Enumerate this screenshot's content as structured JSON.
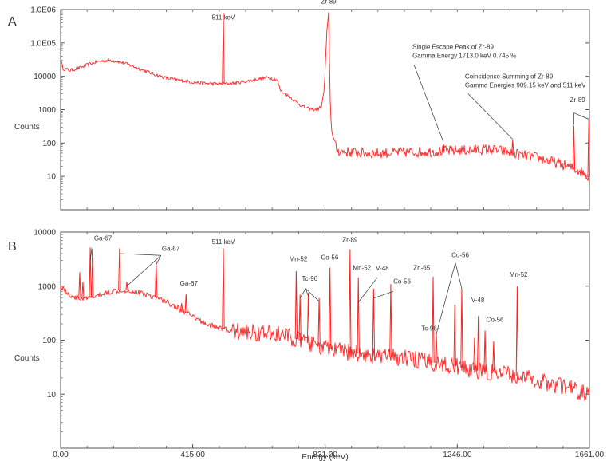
{
  "colors": {
    "trace": "#ff2020",
    "axis": "#555555",
    "leader": "#333333"
  },
  "chart_data": [
    {
      "type": "line",
      "panel_letter": "A",
      "ylabel": "Counts",
      "yscale": "log",
      "ylim": [
        1,
        1000000
      ],
      "xlim": [
        0,
        1661
      ],
      "ytick_values": [
        10,
        100,
        1000,
        10000,
        100000,
        1000000
      ],
      "ytick_labels": [
        "10",
        "100",
        "1000",
        "10000",
        "1.0E05",
        "1.0E06"
      ],
      "baseline": [
        [
          0,
          30000
        ],
        [
          8,
          17000
        ],
        [
          30,
          15000
        ],
        [
          60,
          18000
        ],
        [
          90,
          23000
        ],
        [
          120,
          28000
        ],
        [
          150,
          30000
        ],
        [
          180,
          28000
        ],
        [
          210,
          23000
        ],
        [
          240,
          18000
        ],
        [
          270,
          14000
        ],
        [
          300,
          11000
        ],
        [
          330,
          9000
        ],
        [
          360,
          8000
        ],
        [
          390,
          7200
        ],
        [
          420,
          6600
        ],
        [
          450,
          6200
        ],
        [
          480,
          6000
        ],
        [
          500,
          5900
        ],
        [
          520,
          6000
        ],
        [
          540,
          6200
        ],
        [
          560,
          6600
        ],
        [
          580,
          7000
        ],
        [
          600,
          7500
        ],
        [
          620,
          8200
        ],
        [
          650,
          9200
        ],
        [
          680,
          8000
        ],
        [
          690,
          3800
        ],
        [
          700,
          3200
        ],
        [
          720,
          2400
        ],
        [
          740,
          1700
        ],
        [
          760,
          1250
        ],
        [
          780,
          1050
        ],
        [
          800,
          1000
        ],
        [
          810,
          1050
        ],
        [
          820,
          1300
        ],
        [
          828,
          4000
        ],
        [
          836,
          200000
        ],
        [
          842,
          800000
        ],
        [
          846,
          3000
        ],
        [
          850,
          300
        ],
        [
          856,
          150
        ],
        [
          862,
          85
        ],
        [
          870,
          60
        ],
        [
          890,
          55
        ],
        [
          950,
          50
        ],
        [
          1000,
          50
        ],
        [
          1050,
          52
        ],
        [
          1100,
          53
        ],
        [
          1150,
          55
        ],
        [
          1200,
          58
        ],
        [
          1250,
          60
        ],
        [
          1300,
          62
        ],
        [
          1340,
          65
        ],
        [
          1380,
          60
        ],
        [
          1420,
          50
        ],
        [
          1460,
          42
        ],
        [
          1500,
          36
        ],
        [
          1540,
          28
        ],
        [
          1580,
          22
        ],
        [
          1620,
          16
        ],
        [
          1640,
          13
        ],
        [
          1661,
          10
        ]
      ],
      "peaks": [
        {
          "x": 511,
          "y": 800000
        },
        {
          "x": 1202,
          "y": 95
        },
        {
          "x": 1420,
          "y": 120
        },
        {
          "x": 1612,
          "y": 330
        },
        {
          "x": 1659,
          "y": 500
        }
      ],
      "annotations": [
        {
          "lines": [
            "Zr-89"
          ],
          "x": 842,
          "y": 1500000,
          "anchor": "middle",
          "leaders": []
        },
        {
          "lines": [
            "511 keV"
          ],
          "x": 511,
          "y": 500000,
          "anchor": "middle",
          "leaders": []
        },
        {
          "lines": [
            "Single Escape Peak of Zr-89",
            "Gamma Energy 1713.0 keV 0.745 %"
          ],
          "x": 1105,
          "y": 65000,
          "anchor": "start",
          "leaders": [
            {
              "from": [
                1110,
                22000
              ],
              "to": [
                1202,
                110
              ]
            }
          ]
        },
        {
          "lines": [
            "Coincidence Summing of Zr-89",
            "Gamma Energies 909.15 keV and 511 keV"
          ],
          "x": 1270,
          "y": 8500,
          "anchor": "start",
          "leaders": [
            {
              "from": [
                1280,
                3000
              ],
              "to": [
                1420,
                130
              ]
            }
          ]
        },
        {
          "lines": [
            "Zr-89"
          ],
          "x": 1600,
          "y": 1700,
          "anchor": "start",
          "leaders": [
            {
              "from": [
                1612,
                800
              ],
              "to": [
                1612,
                350
              ]
            },
            {
              "from": [
                1612,
                800
              ],
              "to": [
                1659,
                520
              ]
            }
          ]
        }
      ]
    },
    {
      "type": "line",
      "panel_letter": "B",
      "ylabel": "Counts",
      "yscale": "log",
      "ylim": [
        1,
        10000
      ],
      "xlim": [
        0,
        1661
      ],
      "xlabel": "Energy (keV)",
      "xtick_values": [
        0,
        415,
        831,
        1246,
        1661
      ],
      "xtick_labels": [
        "0.00",
        "415.00",
        "831.00",
        "1246.00",
        "1661.00"
      ],
      "ytick_values": [
        10,
        100,
        1000,
        10000
      ],
      "ytick_labels": [
        "10",
        "100",
        "1000",
        "10000"
      ],
      "baseline": [
        [
          0,
          1000
        ],
        [
          10,
          900
        ],
        [
          25,
          700
        ],
        [
          50,
          600
        ],
        [
          80,
          580
        ],
        [
          100,
          620
        ],
        [
          130,
          700
        ],
        [
          160,
          800
        ],
        [
          190,
          850
        ],
        [
          210,
          830
        ],
        [
          240,
          780
        ],
        [
          270,
          700
        ],
        [
          300,
          620
        ],
        [
          330,
          520
        ],
        [
          360,
          420
        ],
        [
          390,
          330
        ],
        [
          420,
          260
        ],
        [
          450,
          210
        ],
        [
          480,
          180
        ],
        [
          510,
          160
        ],
        [
          540,
          150
        ],
        [
          560,
          145
        ],
        [
          580,
          140
        ],
        [
          600,
          140
        ],
        [
          620,
          135
        ],
        [
          650,
          130
        ],
        [
          680,
          128
        ],
        [
          700,
          125
        ],
        [
          720,
          115
        ],
        [
          740,
          105
        ],
        [
          760,
          95
        ],
        [
          780,
          88
        ],
        [
          800,
          80
        ],
        [
          820,
          75
        ],
        [
          840,
          70
        ],
        [
          860,
          66
        ],
        [
          880,
          62
        ],
        [
          900,
          60
        ],
        [
          950,
          55
        ],
        [
          1000,
          50
        ],
        [
          1050,
          48
        ],
        [
          1100,
          45
        ],
        [
          1150,
          40
        ],
        [
          1200,
          36
        ],
        [
          1250,
          32
        ],
        [
          1300,
          28
        ],
        [
          1350,
          25
        ],
        [
          1400,
          23
        ],
        [
          1450,
          21
        ],
        [
          1500,
          18
        ],
        [
          1550,
          15
        ],
        [
          1600,
          13
        ],
        [
          1630,
          11
        ],
        [
          1661,
          10
        ]
      ],
      "peaks": [
        {
          "x": 60,
          "y": 1800
        },
        {
          "x": 70,
          "y": 1200
        },
        {
          "x": 93,
          "y": 5200
        },
        {
          "x": 100,
          "y": 3400
        },
        {
          "x": 185,
          "y": 5000
        },
        {
          "x": 208,
          "y": 1200
        },
        {
          "x": 300,
          "y": 3000
        },
        {
          "x": 380,
          "y": 480
        },
        {
          "x": 394,
          "y": 720
        },
        {
          "x": 511,
          "y": 5000
        },
        {
          "x": 740,
          "y": 1900
        },
        {
          "x": 752,
          "y": 700
        },
        {
          "x": 778,
          "y": 750
        },
        {
          "x": 812,
          "y": 600
        },
        {
          "x": 846,
          "y": 2200
        },
        {
          "x": 909,
          "y": 4800
        },
        {
          "x": 935,
          "y": 1450
        },
        {
          "x": 983,
          "y": 900
        },
        {
          "x": 1037,
          "y": 1100
        },
        {
          "x": 1170,
          "y": 1500
        },
        {
          "x": 1180,
          "y": 140
        },
        {
          "x": 1238,
          "y": 450
        },
        {
          "x": 1260,
          "y": 900
        },
        {
          "x": 1300,
          "y": 110
        },
        {
          "x": 1312,
          "y": 280
        },
        {
          "x": 1333,
          "y": 150
        },
        {
          "x": 1360,
          "y": 95
        },
        {
          "x": 1434,
          "y": 1000
        }
      ],
      "annotations": [
        {
          "lines": [
            "Ga-67"
          ],
          "x": 105,
          "y": 7000,
          "anchor": "start",
          "leaders": [
            {
              "from": [
                98,
                5000
              ],
              "to": [
                93,
                3000
              ]
            },
            {
              "from": [
                98,
                5000
              ],
              "to": [
                100,
                2600
              ]
            }
          ]
        },
        {
          "lines": [
            "Ga-67"
          ],
          "x": 318,
          "y": 4500,
          "anchor": "start",
          "leaders": [
            {
              "from": [
                315,
                3700
              ],
              "to": [
                185,
                4000
              ]
            },
            {
              "from": [
                315,
                3700
              ],
              "to": [
                208,
                1000
              ]
            },
            {
              "from": [
                315,
                3700
              ],
              "to": [
                300,
                2500
              ]
            }
          ]
        },
        {
          "lines": [
            "Ga-67"
          ],
          "x": 375,
          "y": 1020,
          "anchor": "start",
          "leaders": []
        },
        {
          "lines": [
            "511 keV"
          ],
          "x": 511,
          "y": 6000,
          "anchor": "middle",
          "leaders": []
        },
        {
          "lines": [
            "Mn-52"
          ],
          "x": 718,
          "y": 2900,
          "anchor": "start",
          "leaders": []
        },
        {
          "lines": [
            "Tc-96"
          ],
          "x": 758,
          "y": 1250,
          "anchor": "start",
          "leaders": [
            {
              "from": [
                770,
                900
              ],
              "to": [
                752,
                600
              ]
            },
            {
              "from": [
                770,
                900
              ],
              "to": [
                778,
                650
              ]
            },
            {
              "from": [
                770,
                900
              ],
              "to": [
                812,
                520
              ]
            }
          ]
        },
        {
          "lines": [
            "Co-56"
          ],
          "x": 818,
          "y": 3100,
          "anchor": "start",
          "leaders": []
        },
        {
          "lines": [
            "Zr-89"
          ],
          "x": 909,
          "y": 6500,
          "anchor": "middle",
          "leaders": []
        },
        {
          "lines": [
            "Mn-52"
          ],
          "x": 918,
          "y": 2000,
          "anchor": "start",
          "leaders": []
        },
        {
          "lines": [
            "V-48"
          ],
          "x": 990,
          "y": 1950,
          "anchor": "start",
          "leaders": [
            {
              "from": [
                995,
                1450
              ],
              "to": [
                935,
                500
              ]
            }
          ]
        },
        {
          "lines": [
            "Co-56"
          ],
          "x": 1045,
          "y": 1120,
          "anchor": "start",
          "leaders": [
            {
              "from": [
                1045,
                800
              ],
              "to": [
                983,
                600
              ]
            }
          ]
        },
        {
          "lines": [
            "Zn-65"
          ],
          "x": 1108,
          "y": 2000,
          "anchor": "start",
          "leaders": []
        },
        {
          "lines": [
            "Co-56"
          ],
          "x": 1228,
          "y": 3400,
          "anchor": "start",
          "leaders": [
            {
              "from": [
                1240,
                2700
              ],
              "to": [
                1180,
                130
              ]
            },
            {
              "from": [
                1240,
                2700
              ],
              "to": [
                1260,
                900
              ]
            }
          ]
        },
        {
          "lines": [
            "Tc-96"
          ],
          "x": 1133,
          "y": 150,
          "anchor": "start",
          "leaders": []
        },
        {
          "lines": [
            "V-48"
          ],
          "x": 1290,
          "y": 500,
          "anchor": "start",
          "leaders": []
        },
        {
          "lines": [
            "Co-56"
          ],
          "x": 1337,
          "y": 220,
          "anchor": "start",
          "leaders": []
        },
        {
          "lines": [
            "Mn-52"
          ],
          "x": 1410,
          "y": 1500,
          "anchor": "start",
          "leaders": []
        }
      ]
    }
  ]
}
